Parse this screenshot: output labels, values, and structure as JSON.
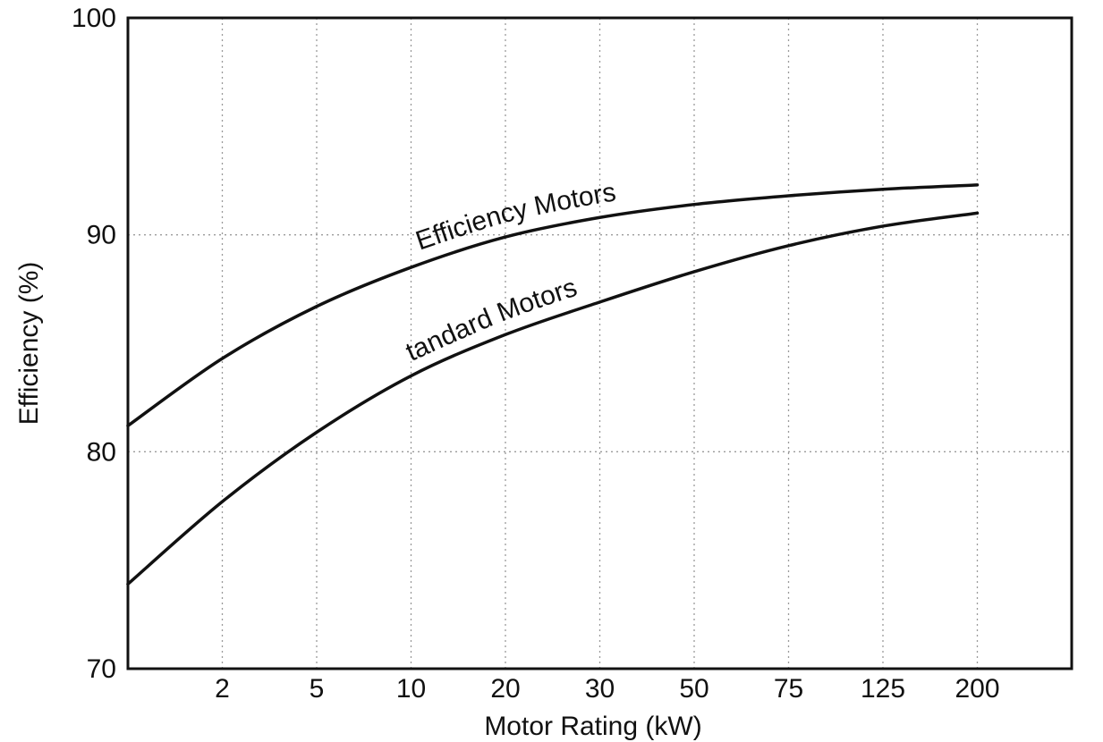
{
  "chart_data": {
    "type": "line",
    "title": "",
    "xlabel": "Motor Rating (kW)",
    "ylabel": "Efficiency (%)",
    "x_scale": "categorical-evenly-spaced",
    "categories": [
      "",
      "2",
      "5",
      "10",
      "20",
      "30",
      "50",
      "75",
      "125",
      "200"
    ],
    "y_ticks": [
      "70",
      "80",
      "90",
      "100"
    ],
    "ylim": [
      70,
      100
    ],
    "grid": true,
    "legend": "none",
    "series": [
      {
        "name": "High Efficiency Motors",
        "values": [
          81.2,
          84.3,
          86.7,
          88.5,
          89.9,
          90.8,
          91.4,
          91.8,
          92.1,
          92.3
        ]
      },
      {
        "name": "Standard Motors",
        "values": [
          73.9,
          77.7,
          80.9,
          83.5,
          85.4,
          86.9,
          88.3,
          89.5,
          90.4,
          91.0
        ]
      }
    ]
  }
}
